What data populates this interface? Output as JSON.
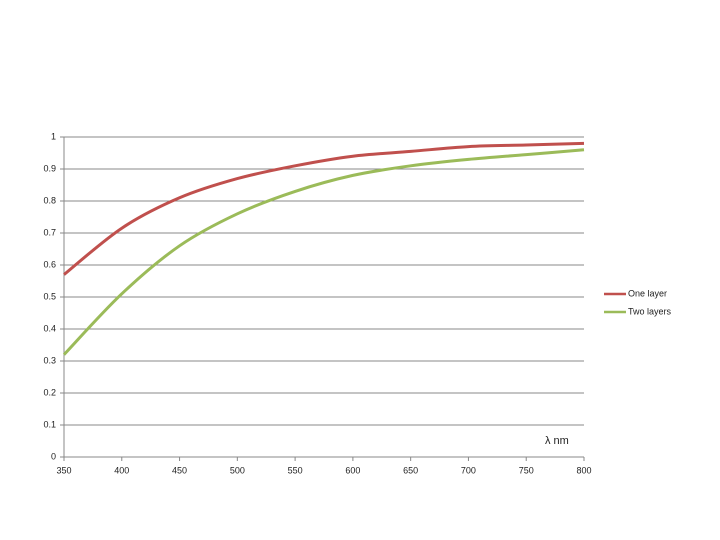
{
  "chart_data": {
    "type": "line",
    "x": [
      350,
      400,
      450,
      500,
      550,
      600,
      650,
      700,
      750,
      800
    ],
    "series": [
      {
        "name": "One layer",
        "color": "#c0504d",
        "values": [
          0.57,
          0.715,
          0.81,
          0.87,
          0.91,
          0.94,
          0.955,
          0.97,
          0.975,
          0.98
        ]
      },
      {
        "name": "Two layers",
        "color": "#9bbb59",
        "values": [
          0.32,
          0.51,
          0.66,
          0.76,
          0.83,
          0.88,
          0.91,
          0.93,
          0.945,
          0.96
        ]
      }
    ],
    "xlim": [
      350,
      800
    ],
    "xticks": [
      350,
      400,
      450,
      500,
      550,
      600,
      650,
      700,
      750,
      800
    ],
    "ylim": [
      0,
      1
    ],
    "yticks": [
      0,
      0.1,
      0.2,
      0.3,
      0.4,
      0.5,
      0.6,
      0.7,
      0.8,
      0.9,
      1
    ],
    "grid": true,
    "legend": "right",
    "annotation": "λ nm"
  }
}
